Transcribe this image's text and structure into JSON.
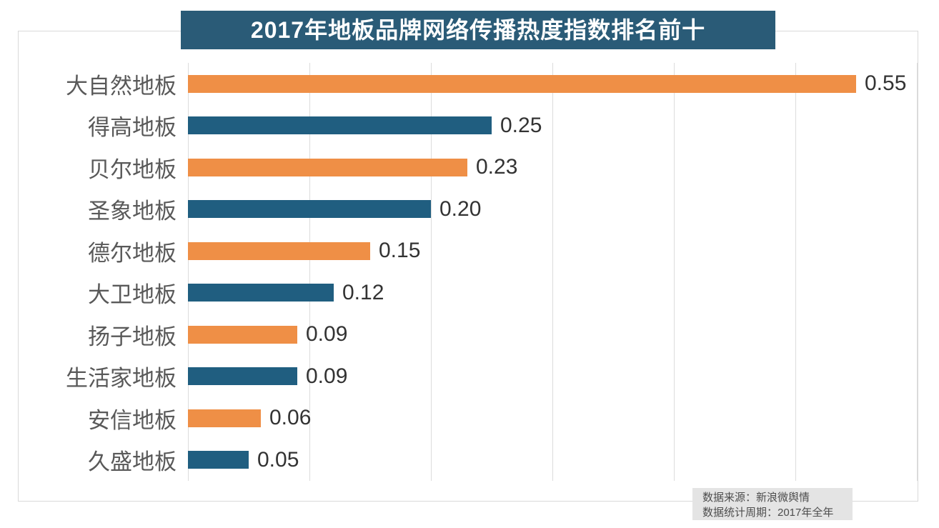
{
  "title": "2017年地板品牌网络传播热度指数排名前十",
  "source_note": {
    "line1": "数据来源：新浪微舆情",
    "line2": "数据统计周期：2017年全年"
  },
  "colors": {
    "title_bg": "#2A5B77",
    "bar_orange": "#EF8F46",
    "bar_teal": "#205E80",
    "grid": "#dcdcdc",
    "category_text": "#595959",
    "value_text": "#333333",
    "note_bg": "#E4E4E4",
    "note_text": "#4d4d4d"
  },
  "chart_data": {
    "type": "bar",
    "orientation": "horizontal",
    "title": "2017年地板品牌网络传播热度指数排名前十",
    "categories": [
      "大自然地板",
      "得高地板",
      "贝尔地板",
      "圣象地板",
      "德尔地板",
      "大卫地板",
      "扬子地板",
      "生活家地板",
      "安信地板",
      "久盛地板"
    ],
    "values": [
      0.55,
      0.25,
      0.23,
      0.2,
      0.15,
      0.12,
      0.09,
      0.09,
      0.06,
      0.05
    ],
    "value_labels": [
      "0.55",
      "0.25",
      "0.23",
      "0.20",
      "0.15",
      "0.12",
      "0.09",
      "0.09",
      "0.06",
      "0.05"
    ],
    "xlabel": "",
    "ylabel": "",
    "xlim": [
      0,
      0.6
    ],
    "grid": true,
    "gridline_interval": 0.1,
    "legend": false,
    "bar_color_pattern": [
      "orange",
      "teal"
    ],
    "value_label_position": "right-of-bar"
  }
}
